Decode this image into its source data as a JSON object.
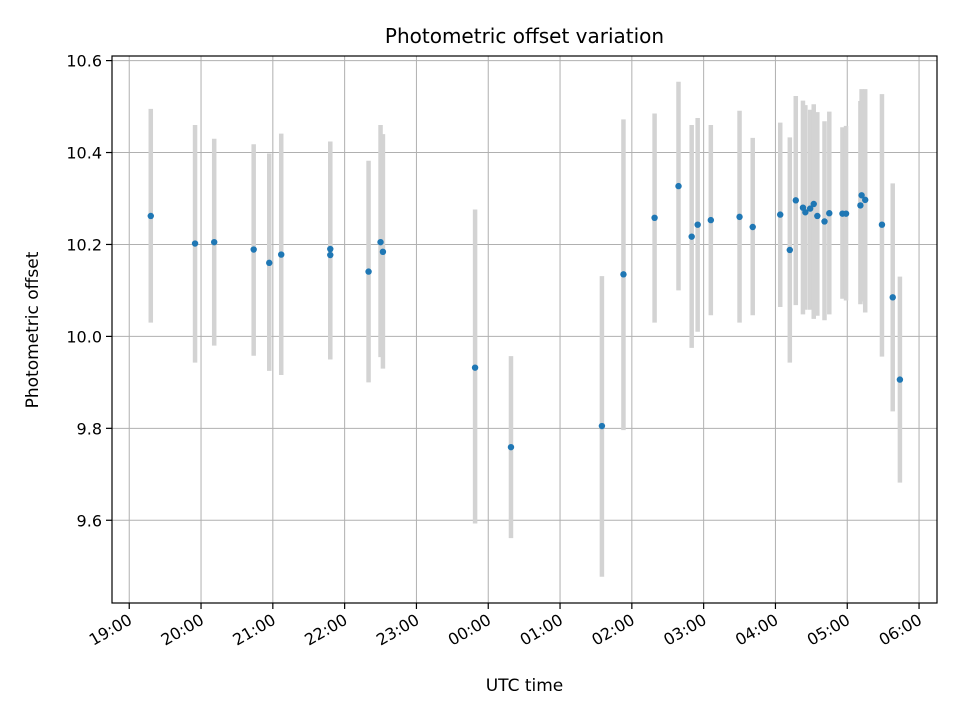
{
  "chart_data": {
    "type": "scatter",
    "title": "Photometric offset variation",
    "xlabel": "UTC time",
    "ylabel": "Photometric offset",
    "grid": true,
    "x_tick_labels": [
      "19:00",
      "20:00",
      "21:00",
      "22:00",
      "23:00",
      "00:00",
      "01:00",
      "02:00",
      "03:00",
      "04:00",
      "05:00",
      "06:00"
    ],
    "y_tick_labels": [
      "9.6",
      "9.8",
      "10.0",
      "10.2",
      "10.4",
      "10.6"
    ],
    "y_ticks": [
      9.6,
      9.8,
      10.0,
      10.2,
      10.4,
      10.6
    ],
    "ylim": [
      9.42,
      10.61
    ],
    "xlim_hours": [
      18.76,
      30.25
    ],
    "colors": {
      "point": "#1f77b4",
      "errorbar": "#d3d3d3",
      "grid": "#b0b0b0"
    },
    "points": [
      {
        "t": "19:18",
        "y": 10.262,
        "lo": 10.03,
        "hi": 10.495
      },
      {
        "t": "19:55",
        "y": 10.202,
        "lo": 9.943,
        "hi": 10.46
      },
      {
        "t": "20:11",
        "y": 10.205,
        "lo": 9.98,
        "hi": 10.43
      },
      {
        "t": "20:44",
        "y": 10.189,
        "lo": 9.958,
        "hi": 10.418
      },
      {
        "t": "20:57",
        "y": 10.16,
        "lo": 9.925,
        "hi": 10.398
      },
      {
        "t": "21:07",
        "y": 10.178,
        "lo": 9.916,
        "hi": 10.441
      },
      {
        "t": "21:48",
        "y": 10.177,
        "lo": 9.95,
        "hi": 10.424
      },
      {
        "t": "21:48",
        "y": 10.19,
        "lo": 9.95,
        "hi": 10.424
      },
      {
        "t": "22:20",
        "y": 10.141,
        "lo": 9.9,
        "hi": 10.382
      },
      {
        "t": "22:30",
        "y": 10.205,
        "lo": 9.955,
        "hi": 10.46
      },
      {
        "t": "22:32",
        "y": 10.184,
        "lo": 9.93,
        "hi": 10.44
      },
      {
        "t": "23:49",
        "y": 9.932,
        "lo": 9.593,
        "hi": 10.276
      },
      {
        "t": "00:19",
        "y": 9.759,
        "lo": 9.561,
        "hi": 9.957
      },
      {
        "t": "01:35",
        "y": 9.805,
        "lo": 9.477,
        "hi": 10.131
      },
      {
        "t": "01:53",
        "y": 10.135,
        "lo": 9.796,
        "hi": 10.472
      },
      {
        "t": "02:19",
        "y": 10.258,
        "lo": 10.03,
        "hi": 10.485
      },
      {
        "t": "02:39",
        "y": 10.327,
        "lo": 10.1,
        "hi": 10.554
      },
      {
        "t": "02:50",
        "y": 10.217,
        "lo": 9.975,
        "hi": 10.46
      },
      {
        "t": "02:55",
        "y": 10.243,
        "lo": 10.01,
        "hi": 10.475
      },
      {
        "t": "03:06",
        "y": 10.253,
        "lo": 10.046,
        "hi": 10.46
      },
      {
        "t": "03:30",
        "y": 10.26,
        "lo": 10.03,
        "hi": 10.491
      },
      {
        "t": "03:41",
        "y": 10.238,
        "lo": 10.046,
        "hi": 10.432
      },
      {
        "t": "04:04",
        "y": 10.265,
        "lo": 10.064,
        "hi": 10.465
      },
      {
        "t": "04:12",
        "y": 10.188,
        "lo": 9.943,
        "hi": 10.433
      },
      {
        "t": "04:17",
        "y": 10.296,
        "lo": 10.068,
        "hi": 10.523
      },
      {
        "t": "04:23",
        "y": 10.28,
        "lo": 10.048,
        "hi": 10.513
      },
      {
        "t": "04:25",
        "y": 10.27,
        "lo": 10.058,
        "hi": 10.503
      },
      {
        "t": "04:29",
        "y": 10.278,
        "lo": 10.058,
        "hi": 10.493
      },
      {
        "t": "04:32",
        "y": 10.288,
        "lo": 10.038,
        "hi": 10.505
      },
      {
        "t": "04:35",
        "y": 10.262,
        "lo": 10.045,
        "hi": 10.488
      },
      {
        "t": "04:41",
        "y": 10.25,
        "lo": 10.035,
        "hi": 10.468
      },
      {
        "t": "04:45",
        "y": 10.268,
        "lo": 10.048,
        "hi": 10.489
      },
      {
        "t": "04:56",
        "y": 10.267,
        "lo": 10.082,
        "hi": 10.455
      },
      {
        "t": "04:59",
        "y": 10.267,
        "lo": 10.078,
        "hi": 10.458
      },
      {
        "t": "05:11",
        "y": 10.285,
        "lo": 10.07,
        "hi": 10.512
      },
      {
        "t": "05:12",
        "y": 10.307,
        "lo": 10.076,
        "hi": 10.538
      },
      {
        "t": "05:15",
        "y": 10.297,
        "lo": 10.052,
        "hi": 10.538
      },
      {
        "t": "05:29",
        "y": 10.243,
        "lo": 9.956,
        "hi": 10.527
      },
      {
        "t": "05:38",
        "y": 10.085,
        "lo": 9.837,
        "hi": 10.333
      },
      {
        "t": "05:44",
        "y": 9.906,
        "lo": 9.682,
        "hi": 10.13
      }
    ]
  }
}
